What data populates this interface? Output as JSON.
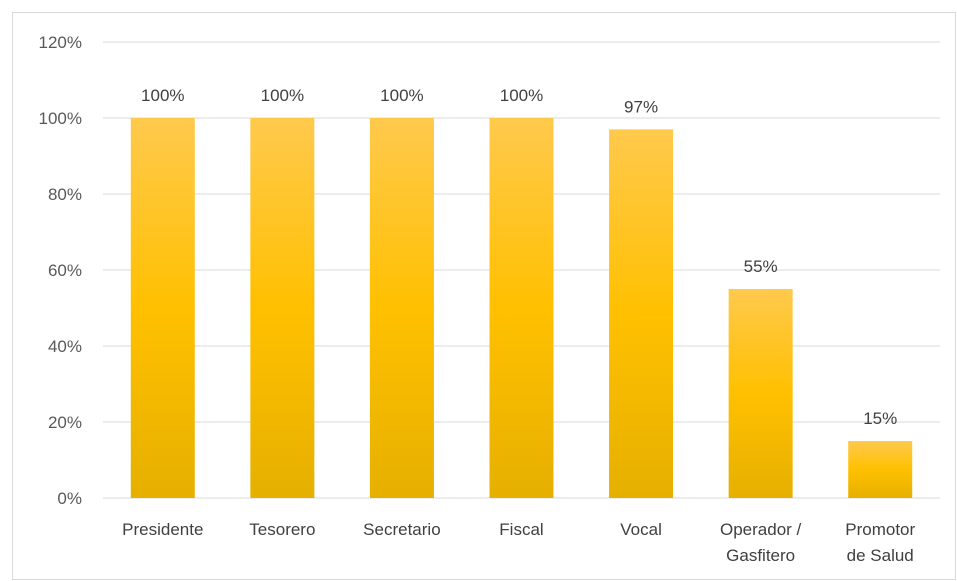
{
  "chart_data": {
    "type": "bar",
    "categories": [
      "Presidente",
      "Tesorero",
      "Secretario",
      "Fiscal",
      "Vocal",
      "Operador / Gasfitero",
      "Promotor de Salud"
    ],
    "category_lines": [
      [
        "Presidente"
      ],
      [
        "Tesorero"
      ],
      [
        "Secretario"
      ],
      [
        "Fiscal"
      ],
      [
        "Vocal"
      ],
      [
        "Operador /",
        "Gasfitero"
      ],
      [
        "Promotor",
        "de Salud"
      ]
    ],
    "values": [
      100,
      100,
      100,
      100,
      97,
      55,
      15
    ],
    "value_labels": [
      "100%",
      "100%",
      "100%",
      "100%",
      "97%",
      "55%",
      "15%"
    ],
    "y_ticks": [
      0,
      20,
      40,
      60,
      80,
      100,
      120
    ],
    "y_tick_labels": [
      "0%",
      "20%",
      "40%",
      "60%",
      "80%",
      "100%",
      "120%"
    ],
    "ylim": [
      0,
      120
    ],
    "title": "",
    "xlabel": "",
    "ylabel": "",
    "grid": true,
    "legend": "none",
    "colors": {
      "bar_top": "#FFC94D",
      "bar_mid": "#FFC000",
      "bar_bottom": "#E6B000",
      "grid": "#D9D9D9"
    }
  }
}
